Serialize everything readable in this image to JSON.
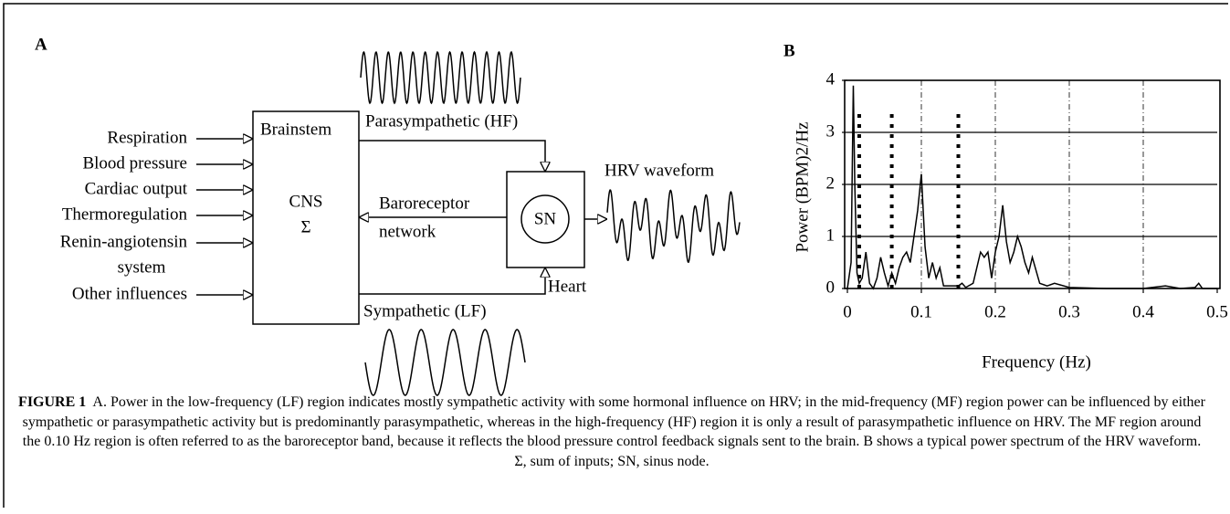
{
  "panel_a": {
    "label": "A",
    "inputs": [
      "Respiration",
      "Blood pressure",
      "Cardiac output",
      "Thermoregulation",
      "Renin-angiotensin",
      "system",
      "Other influences"
    ],
    "brainstem": "Brainstem",
    "cns": "CNS",
    "sigma": "Σ",
    "parasympathetic": "Parasympathetic (HF)",
    "sympathetic": "Sympathetic (LF)",
    "baroreceptor": "Baroreceptor",
    "network": "network",
    "sn": "SN",
    "heart": "Heart",
    "hrv": "HRV waveform"
  },
  "chart_data": {
    "type": "line",
    "label": "B",
    "x_label": "Frequency (Hz)",
    "y_label": "Power (BPM)2/Hz",
    "x": [
      0,
      0.005,
      0.008,
      0.01,
      0.013,
      0.016,
      0.02,
      0.025,
      0.03,
      0.035,
      0.04,
      0.045,
      0.05,
      0.055,
      0.06,
      0.065,
      0.07,
      0.075,
      0.08,
      0.085,
      0.09,
      0.095,
      0.1,
      0.105,
      0.11,
      0.115,
      0.12,
      0.125,
      0.13,
      0.14,
      0.15,
      0.155,
      0.16,
      0.17,
      0.18,
      0.185,
      0.19,
      0.195,
      0.2,
      0.205,
      0.21,
      0.215,
      0.22,
      0.225,
      0.23,
      0.235,
      0.24,
      0.245,
      0.25,
      0.26,
      0.27,
      0.28,
      0.3,
      0.35,
      0.4,
      0.43,
      0.45,
      0.47,
      0.475,
      0.48,
      0.5
    ],
    "series": [
      {
        "name": "HRV power spectrum",
        "color": "#000000",
        "values": [
          0,
          0.5,
          3.9,
          2.0,
          0.3,
          0.1,
          0.2,
          0.7,
          0.1,
          0,
          0.2,
          0.6,
          0.3,
          0.05,
          0.3,
          0.1,
          0.4,
          0.6,
          0.7,
          0.5,
          1.0,
          1.5,
          2.2,
          0.8,
          0.2,
          0.5,
          0.2,
          0.4,
          0.05,
          0.05,
          0.05,
          0.1,
          0.02,
          0.1,
          0.7,
          0.6,
          0.7,
          0.2,
          0.7,
          1.0,
          1.6,
          0.9,
          0.5,
          0.7,
          1.0,
          0.8,
          0.5,
          0.3,
          0.6,
          0.1,
          0.05,
          0.1,
          0.02,
          0,
          0,
          0.05,
          0,
          0.02,
          0.1,
          0,
          0
        ]
      }
    ],
    "band_edges": [
      0.016,
      0.06,
      0.15
    ],
    "band_edge_height": 3.4,
    "xlim": [
      0,
      0.5
    ],
    "xticks": [
      0,
      0.1,
      0.2,
      0.3,
      0.4,
      0.5
    ],
    "ylim": [
      0,
      4
    ],
    "yticks": [
      0,
      1,
      2,
      3,
      4
    ],
    "grid": true
  },
  "caption": {
    "label": "FIGURE 1",
    "text": "A. Power in the low-frequency (LF) region indicates mostly sympathetic activity with some hormonal influence on HRV; in the mid-frequency (MF) region power can be influenced by either sympathetic or parasympathetic activity but is predominantly parasympathetic, whereas in the high-frequency (HF) region it is only a result of parasympathetic influence on HRV. The MF region around the 0.10 Hz region is often referred to as the baroreceptor band, because it reflects the blood pressure control feedback signals sent to the brain.  B shows a typical power spectrum of the HRV waveform. Σ, sum of inputs; SN, sinus node."
  }
}
